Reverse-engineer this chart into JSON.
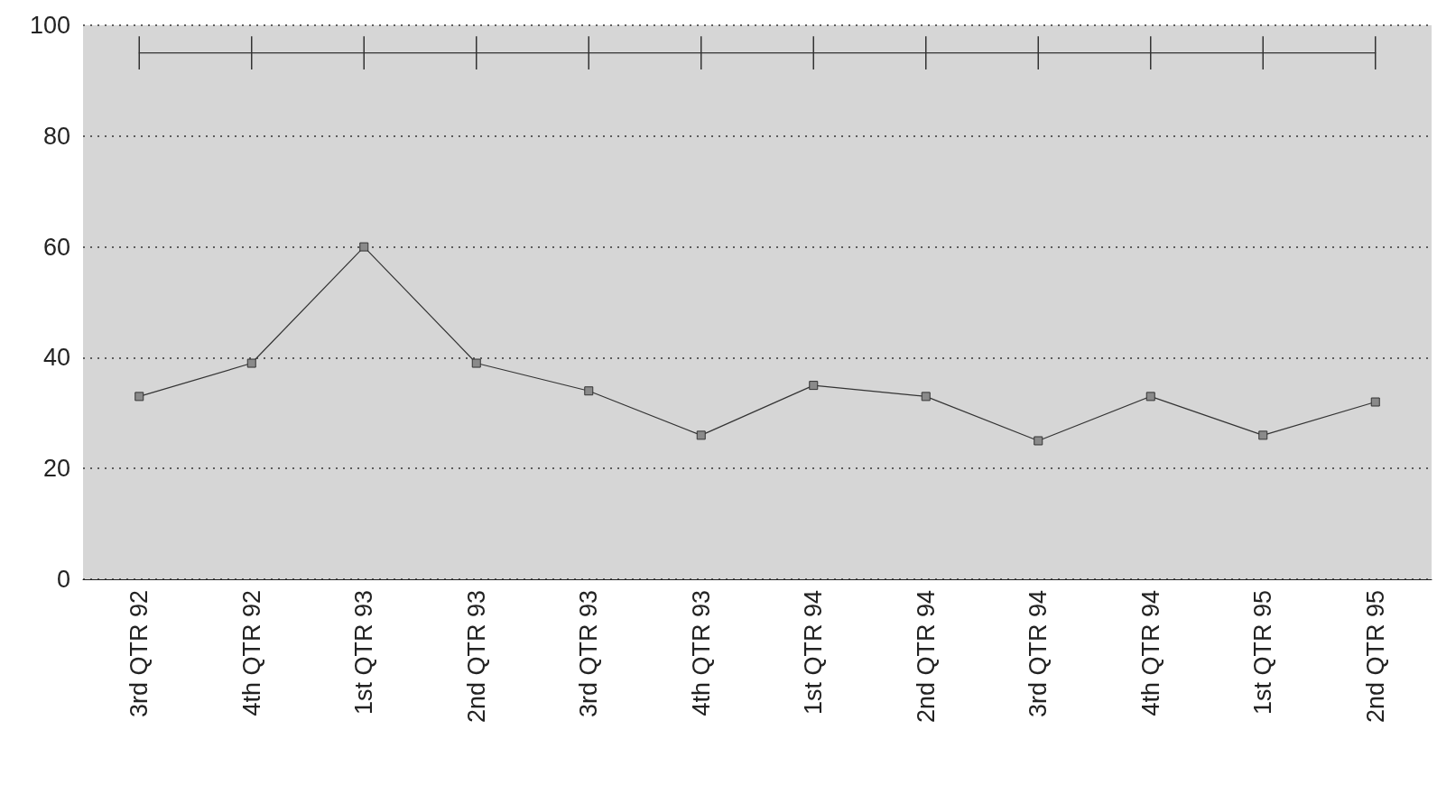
{
  "chart_data": {
    "type": "line",
    "categories": [
      "3rd QTR 92",
      "4th QTR 92",
      "1st QTR 93",
      "2nd QTR 93",
      "3rd QTR 93",
      "4th QTR 93",
      "1st QTR 94",
      "2nd QTR 94",
      "3rd QTR 94",
      "4th QTR 94",
      "1st QTR 95",
      "2nd QTR 95"
    ],
    "series": [
      {
        "color": "#333333",
        "marker": "none",
        "values": [
          95,
          95,
          95,
          95,
          95,
          95,
          95,
          95,
          95,
          95,
          95,
          95
        ],
        "errors": [
          3,
          3,
          3,
          3,
          3,
          3,
          3,
          3,
          3,
          3,
          3,
          3
        ]
      },
      {
        "color": "#333333",
        "marker": "square",
        "values": [
          33,
          39,
          60,
          39,
          34,
          26,
          35,
          33,
          25,
          33,
          26,
          32
        ]
      }
    ],
    "ylim": [
      0,
      100
    ],
    "yticks": [
      0,
      20,
      40,
      60,
      80,
      100
    ],
    "grid": "y",
    "line_style": "solid"
  }
}
